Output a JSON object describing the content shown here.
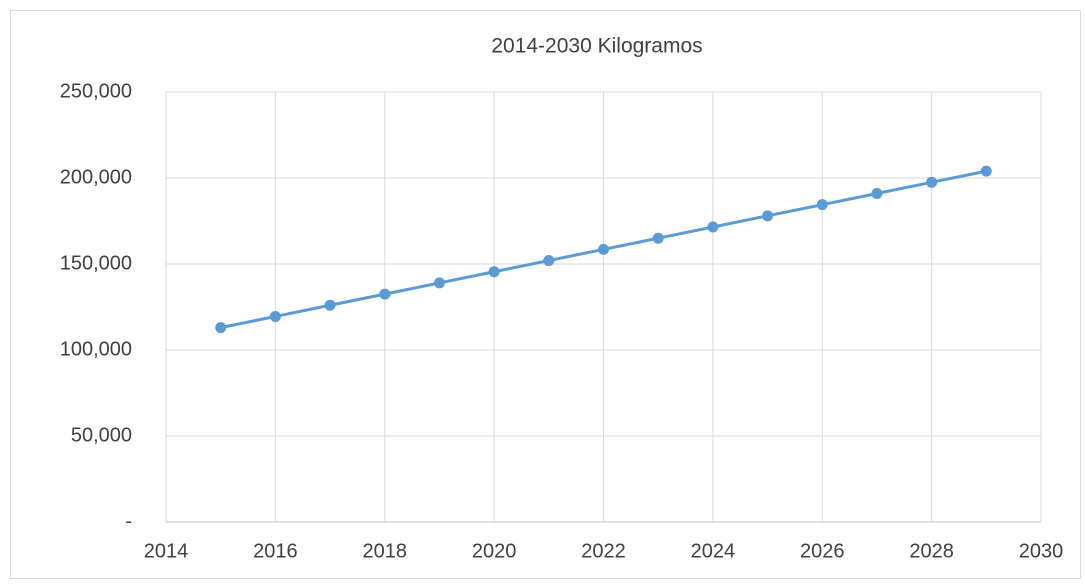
{
  "chart_data": {
    "type": "line",
    "title": "2014-2030 Kilogramos",
    "x": [
      2015,
      2016,
      2017,
      2018,
      2019,
      2020,
      2021,
      2022,
      2023,
      2024,
      2025,
      2026,
      2027,
      2028,
      2029
    ],
    "series": [
      {
        "name": "Kilogramos",
        "color": "#5b9bd5",
        "values": [
          113000,
          119500,
          126000,
          132500,
          139000,
          145500,
          152000,
          158500,
          165000,
          171500,
          178000,
          184500,
          191000,
          197500,
          204000
        ]
      }
    ],
    "xlim": [
      2014,
      2030
    ],
    "xticks": [
      2014,
      2016,
      2018,
      2020,
      2022,
      2024,
      2026,
      2028,
      2030
    ],
    "ylim": [
      0,
      250000
    ],
    "yticks": [
      {
        "value": 0,
        "label": "-"
      },
      {
        "value": 50000,
        "label": "50,000"
      },
      {
        "value": 100000,
        "label": "100,000"
      },
      {
        "value": 150000,
        "label": "150,000"
      },
      {
        "value": 200000,
        "label": "200,000"
      },
      {
        "value": 250000,
        "label": "250,000"
      }
    ],
    "grid": true,
    "markers": true
  }
}
